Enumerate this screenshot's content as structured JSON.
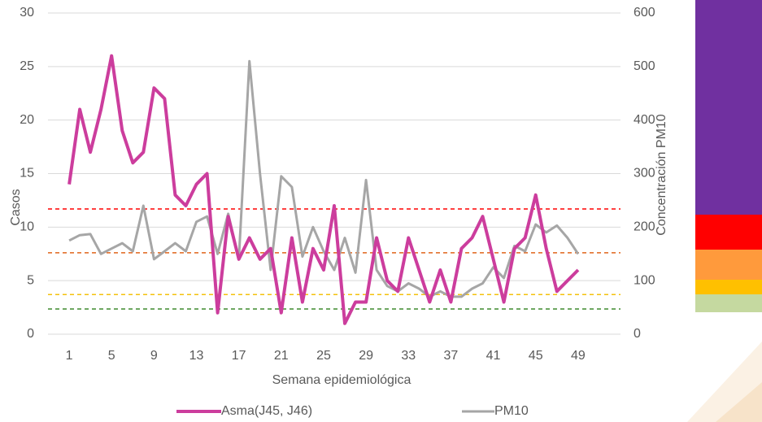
{
  "chart_data": {
    "type": "line",
    "xlabel": "Semana epidemiológica",
    "ylabel": "Casos",
    "y2label": "Concentración PM10",
    "x": [
      1,
      2,
      3,
      4,
      5,
      6,
      7,
      8,
      9,
      10,
      11,
      12,
      13,
      14,
      15,
      16,
      17,
      18,
      19,
      20,
      21,
      22,
      23,
      24,
      25,
      26,
      27,
      28,
      29,
      30,
      31,
      32,
      33,
      34,
      35,
      36,
      37,
      38,
      39,
      40,
      41,
      42,
      43,
      44,
      45,
      46,
      47,
      48,
      49
    ],
    "xlim": [
      -1,
      53
    ],
    "xticks": [
      1,
      5,
      9,
      13,
      17,
      21,
      25,
      29,
      33,
      37,
      41,
      45,
      49
    ],
    "ylim": [
      0,
      30
    ],
    "yticks": [
      0,
      5,
      10,
      15,
      20,
      25,
      30
    ],
    "y2lim": [
      0,
      600
    ],
    "y2ticks": [
      0,
      100,
      200,
      300,
      400,
      500,
      600
    ],
    "series": [
      {
        "name": "Asma(J45, J46)",
        "color": "#cc3d9d",
        "values": [
          14,
          21,
          17,
          21,
          26,
          19,
          16,
          17,
          23,
          22,
          13,
          12,
          14,
          15,
          2,
          11,
          7,
          9,
          7,
          8,
          2,
          9,
          3,
          8,
          6,
          12,
          1,
          3,
          3,
          9,
          5,
          4,
          9,
          6,
          3,
          6,
          3,
          8,
          9,
          11,
          7,
          3,
          8,
          9,
          13,
          8,
          4,
          5,
          6
        ]
      },
      {
        "name": "PM10",
        "color": "#a6a6a6",
        "axis": "y2",
        "values": [
          175,
          185,
          187,
          150,
          160,
          170,
          155,
          240,
          140,
          155,
          170,
          155,
          210,
          220,
          150,
          225,
          140,
          510,
          300,
          120,
          295,
          275,
          145,
          200,
          155,
          120,
          180,
          115,
          288,
          120,
          90,
          80,
          95,
          85,
          70,
          80,
          70,
          70,
          85,
          95,
          125,
          105,
          165,
          155,
          205,
          190,
          203,
          180,
          150
        ]
      }
    ],
    "reference_lines": [
      {
        "value": 234,
        "color": "#ff0000",
        "axis": "y2"
      },
      {
        "value": 152,
        "color": "#e0641b",
        "axis": "y2"
      },
      {
        "value": 74,
        "color": "#f4c20d",
        "axis": "y2"
      },
      {
        "value": 47,
        "color": "#3e8a2e",
        "axis": "y2"
      }
    ]
  }
}
